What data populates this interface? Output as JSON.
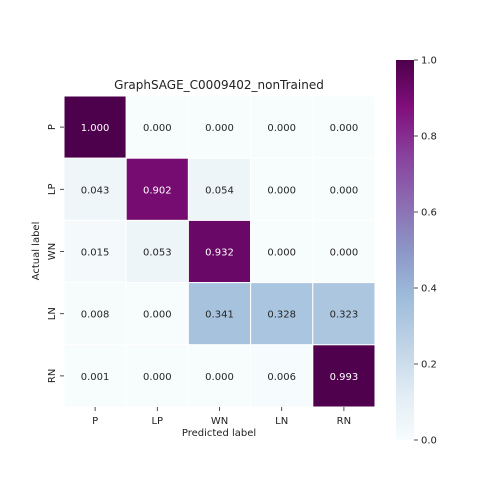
{
  "chart_data": {
    "type": "heatmap",
    "title": "GraphSAGE_C0009402_nonTrained",
    "xlabel": "Predicted label",
    "ylabel": "Actual label",
    "x_categories": [
      "P",
      "LP",
      "WN",
      "LN",
      "RN"
    ],
    "y_categories": [
      "P",
      "LP",
      "WN",
      "LN",
      "RN"
    ],
    "values": [
      [
        1.0,
        0.0,
        0.0,
        0.0,
        0.0
      ],
      [
        0.043,
        0.902,
        0.054,
        0.0,
        0.0
      ],
      [
        0.015,
        0.053,
        0.932,
        0.0,
        0.0
      ],
      [
        0.008,
        0.0,
        0.341,
        0.328,
        0.323
      ],
      [
        0.001,
        0.0,
        0.0,
        0.006,
        0.993
      ]
    ],
    "cell_labels": [
      [
        "1.000",
        "0.000",
        "0.000",
        "0.000",
        "0.000"
      ],
      [
        "0.043",
        "0.902",
        "0.054",
        "0.000",
        "0.000"
      ],
      [
        "0.015",
        "0.053",
        "0.932",
        "0.000",
        "0.000"
      ],
      [
        "0.008",
        "0.000",
        "0.341",
        "0.328",
        "0.323"
      ],
      [
        "0.001",
        "0.000",
        "0.000",
        "0.006",
        "0.993"
      ]
    ],
    "colorbar": {
      "range": [
        0.0,
        1.0
      ],
      "ticks": [
        "0.0",
        "0.2",
        "0.4",
        "0.6",
        "0.8",
        "1.0"
      ],
      "colormap": "BuPu",
      "colors": [
        "#f7fcfd",
        "#e0ecf4",
        "#bfd3e6",
        "#9ebcda",
        "#8c96c6",
        "#8c6bb1",
        "#88419d",
        "#810f7c",
        "#4d004b"
      ]
    },
    "grid": "white cell borders",
    "legend": "colorbar right"
  }
}
